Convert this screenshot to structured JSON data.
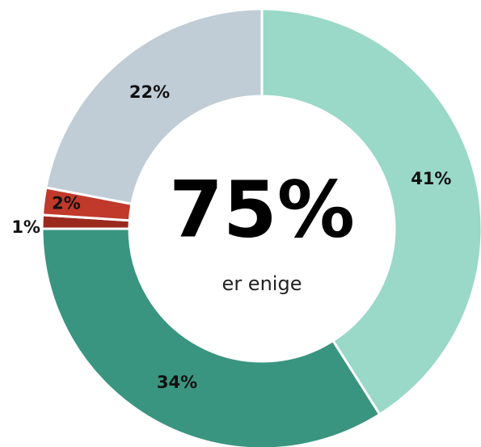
{
  "chart_data": {
    "type": "donut",
    "categories": [
      null,
      null,
      null,
      null,
      null
    ],
    "values": [
      41,
      34,
      1,
      2,
      22
    ],
    "value_labels": [
      "41%",
      "34%",
      "1%",
      "2%",
      "22%"
    ],
    "colors": [
      "#9ad8c8",
      "#3a9580",
      "#9b2a1e",
      "#c0392b",
      "#c0cdd6"
    ],
    "center_value": "75%",
    "center_label": "er enige"
  }
}
